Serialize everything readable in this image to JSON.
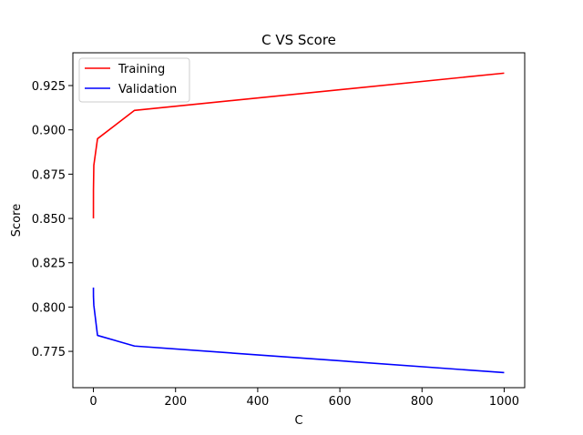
{
  "chart_data": {
    "type": "line",
    "title": "C VS Score",
    "xlabel": "C",
    "ylabel": "Score",
    "xlim": [
      -50,
      1050
    ],
    "ylim": [
      0.7545,
      0.9435
    ],
    "xticks": [
      0,
      200,
      400,
      600,
      800,
      1000
    ],
    "xtick_labels": [
      "0",
      "200",
      "400",
      "600",
      "800",
      "1000"
    ],
    "yticks": [
      0.775,
      0.8,
      0.825,
      0.85,
      0.875,
      0.9,
      0.925
    ],
    "ytick_labels": [
      "0.775",
      "0.800",
      "0.825",
      "0.850",
      "0.875",
      "0.900",
      "0.925"
    ],
    "grid": false,
    "legend_position": "top-left",
    "x": [
      0.01,
      0.1,
      1,
      10,
      100,
      1000
    ],
    "series": [
      {
        "name": "Training",
        "color": "#ff0000",
        "values": [
          0.85,
          0.866,
          0.88,
          0.895,
          0.911,
          0.932
        ]
      },
      {
        "name": "Validation",
        "color": "#0000ff",
        "values": [
          0.811,
          0.806,
          0.801,
          0.784,
          0.778,
          0.763
        ]
      }
    ]
  }
}
